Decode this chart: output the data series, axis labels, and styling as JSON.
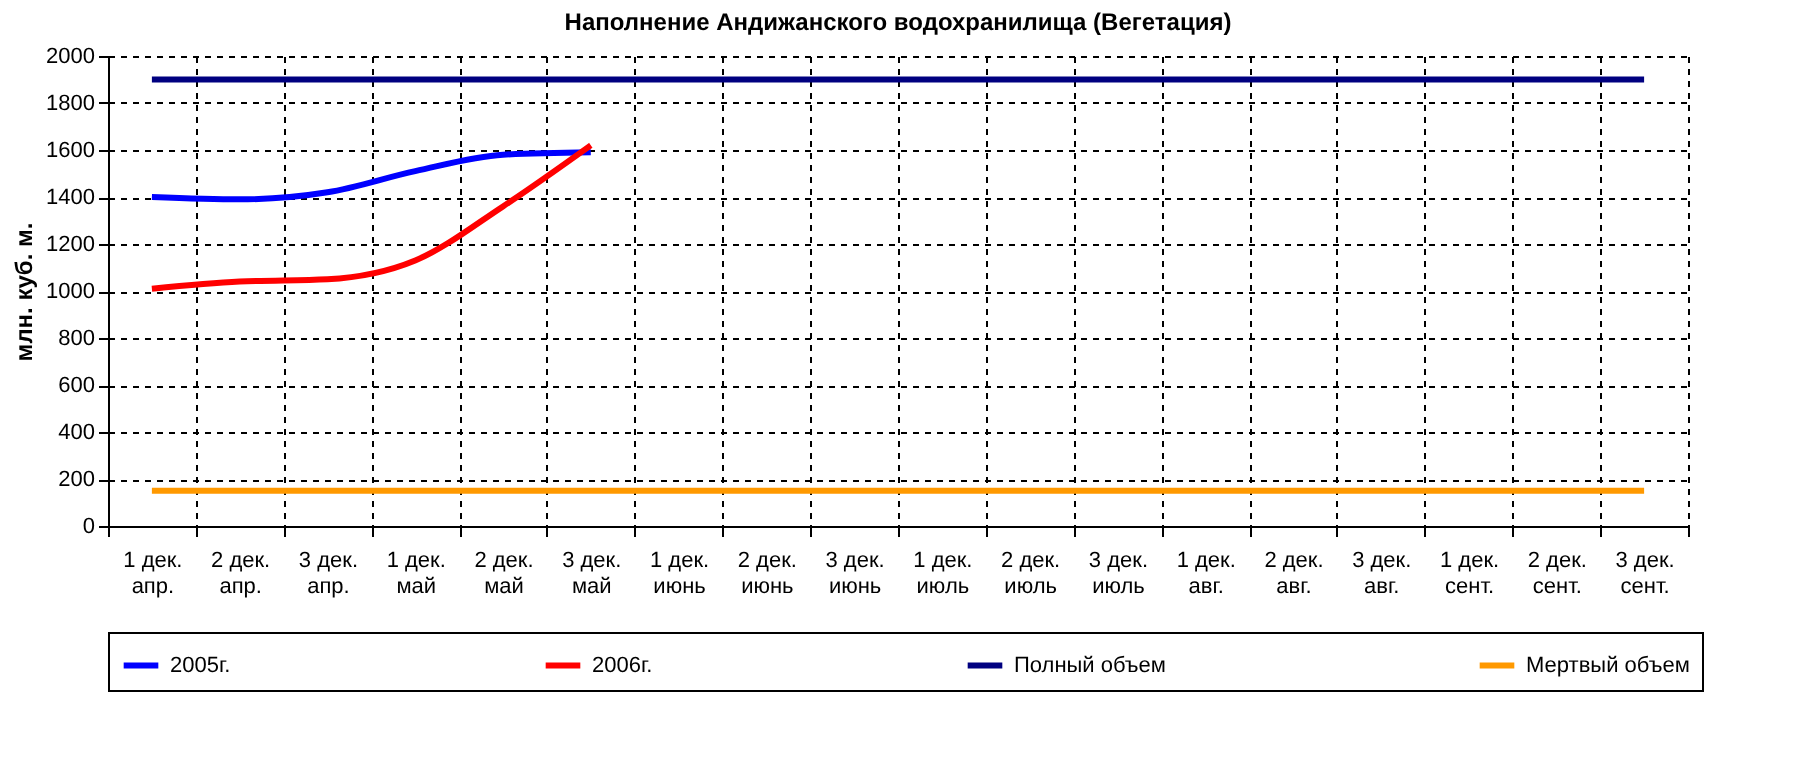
{
  "chart_data": {
    "type": "line",
    "title": "Наполнение Андижанского водохранилища (Вегетация)",
    "ylabel": "млн. куб. м.",
    "categories": [
      "1 дек.\nапр.",
      "2 дек.\nапр.",
      "3 дек.\nапр.",
      "1 дек.\nмай",
      "2 дек.\nмай",
      "3 дек.\nмай",
      "1 дек.\nиюнь",
      "2 дек.\nиюнь",
      "3 дек.\nиюнь",
      "1 дек.\nиюль",
      "2 дек.\nиюль",
      "3 дек.\nиюль",
      "1 дек.\nавг.",
      "2 дек.\nавг.",
      "3 дек.\nавг.",
      "1 дек.\nсент.",
      "2 дек.\nсент.",
      "3 дек.\nсент."
    ],
    "series": [
      {
        "name": "2005г.",
        "color": "#0000ff",
        "values": [
          1400,
          1390,
          1420,
          1510,
          1580,
          1590,
          null,
          null,
          null,
          null,
          null,
          null,
          null,
          null,
          null,
          null,
          null,
          null
        ]
      },
      {
        "name": "2006г.",
        "color": "#ff0000",
        "values": [
          1010,
          1040,
          1050,
          1130,
          1360,
          1620,
          null,
          null,
          null,
          null,
          null,
          null,
          null,
          null,
          null,
          null,
          null,
          null
        ]
      },
      {
        "name": "Полный объем",
        "color": "#000080",
        "values": [
          1900,
          1900,
          1900,
          1900,
          1900,
          1900,
          1900,
          1900,
          1900,
          1900,
          1900,
          1900,
          1900,
          1900,
          1900,
          1900,
          1900,
          1900
        ]
      },
      {
        "name": "Мертвый объем",
        "color": "#ff9900",
        "values": [
          150,
          150,
          150,
          150,
          150,
          150,
          150,
          150,
          150,
          150,
          150,
          150,
          150,
          150,
          150,
          150,
          150,
          150
        ]
      }
    ],
    "ylim": [
      0,
      2000
    ],
    "yticks": [
      0,
      200,
      400,
      600,
      800,
      1000,
      1200,
      1400,
      1600,
      1800,
      2000
    ],
    "grid": true,
    "legend": "bottom",
    "line_style": "solid",
    "marker": "none"
  }
}
